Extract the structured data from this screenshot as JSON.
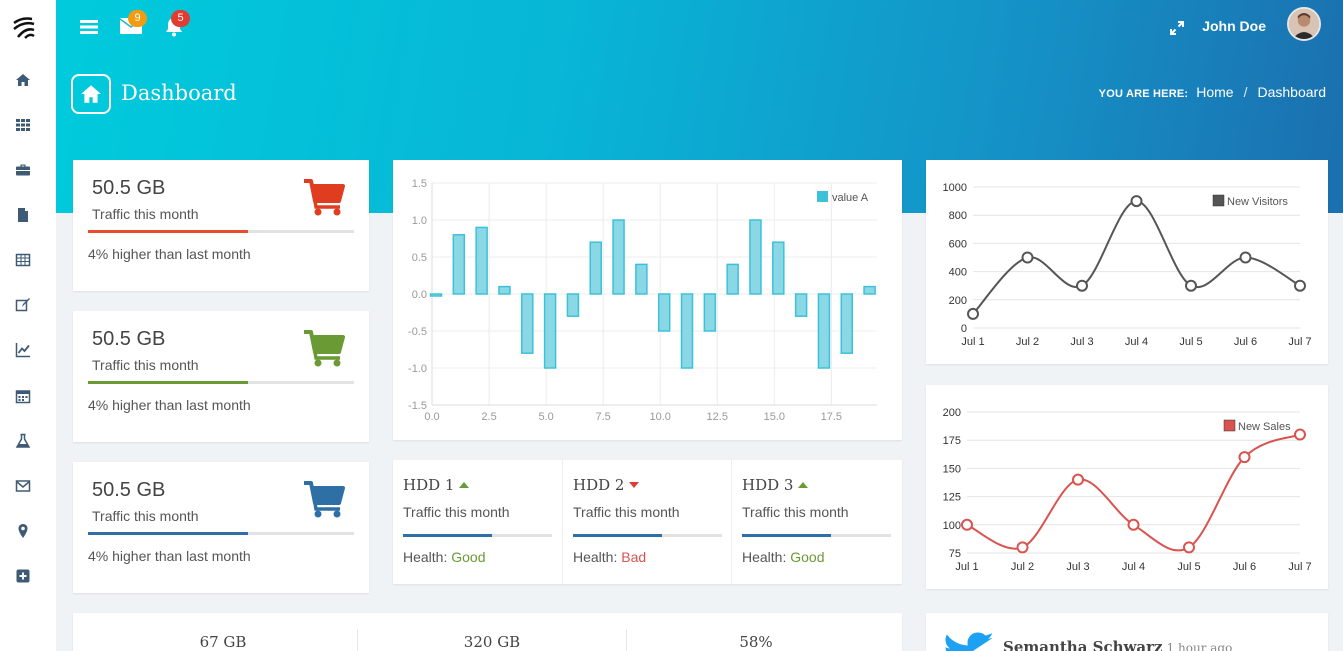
{
  "header": {
    "messages_count": "9",
    "notifications_count": "5",
    "user_name": "John Doe",
    "page_title": "Dashboard",
    "breadcrumb": {
      "label": "YOU ARE HERE:",
      "home": "Home",
      "current": "Dashboard"
    }
  },
  "sidebar": {
    "items": [
      {
        "icon": "home-icon"
      },
      {
        "icon": "grid-icon"
      },
      {
        "icon": "briefcase-icon"
      },
      {
        "icon": "file-icon"
      },
      {
        "icon": "table-icon"
      },
      {
        "icon": "edit-icon"
      },
      {
        "icon": "chart-line-icon"
      },
      {
        "icon": "calendar-icon"
      },
      {
        "icon": "flask-icon"
      },
      {
        "icon": "envelope-icon"
      },
      {
        "icon": "map-marker-icon"
      },
      {
        "icon": "plus-square-icon"
      }
    ]
  },
  "stats": [
    {
      "value": "50.5 GB",
      "label": "Traffic this month",
      "note": "4% higher than last month",
      "progress": 0.6,
      "color": "#e74c2c"
    },
    {
      "value": "50.5 GB",
      "label": "Traffic this month",
      "note": "4% higher than last month",
      "progress": 0.6,
      "color": "#6a9a34"
    },
    {
      "value": "50.5 GB",
      "label": "Traffic this month",
      "note": "4% higher than last month",
      "progress": 0.6,
      "color": "#2e70a5"
    }
  ],
  "hdd": [
    {
      "name": "HDD 1",
      "trend": "up",
      "label": "Traffic this month",
      "health_label": "Health:",
      "health": "Good",
      "progress": 0.6
    },
    {
      "name": "HDD 2",
      "trend": "down",
      "label": "Traffic this month",
      "health_label": "Health:",
      "health": "Bad",
      "progress": 0.6
    },
    {
      "name": "HDD 3",
      "trend": "up",
      "label": "Traffic this month",
      "health_label": "Health:",
      "health": "Good",
      "progress": 0.6
    }
  ],
  "bottom_stats": [
    "67 GB",
    "320 GB",
    "58%"
  ],
  "tweet": {
    "name": "Semantha Schwarz",
    "time": "1 hour ago"
  },
  "chart_data": [
    {
      "type": "bar",
      "series": [
        {
          "name": "value A",
          "color": "#3cc2d8"
        }
      ],
      "x": [
        0,
        1,
        2,
        3,
        4,
        5,
        6,
        7,
        8,
        9,
        10,
        11,
        12,
        13,
        14,
        15,
        16,
        17,
        18,
        19
      ],
      "values": [
        0.0,
        0.8,
        0.9,
        0.1,
        -0.8,
        -1.0,
        -0.3,
        0.7,
        1.0,
        0.4,
        -0.5,
        -1.0,
        -0.5,
        0.4,
        1.0,
        0.7,
        -0.3,
        -1.0,
        -0.8,
        0.1
      ],
      "xticks": [
        "0.0",
        "2.5",
        "5.0",
        "7.5",
        "10.0",
        "12.5",
        "15.0",
        "17.5"
      ],
      "yticks": [
        "1.5",
        "1.0",
        "0.5",
        "0.0",
        "-0.5",
        "-1.0",
        "-1.5"
      ],
      "xlim": [
        0,
        19.5
      ],
      "ylim": [
        -1.5,
        1.5
      ],
      "legend": "top-right",
      "grid": true
    },
    {
      "type": "line",
      "series": [
        {
          "name": "New Visitors",
          "color": "#555555",
          "values": [
            100,
            500,
            300,
            900,
            300,
            500,
            300
          ]
        }
      ],
      "categories": [
        "Jul 1",
        "Jul 2",
        "Jul 3",
        "Jul 4",
        "Jul 5",
        "Jul 6",
        "Jul 7"
      ],
      "yticks": [
        "1000",
        "800",
        "600",
        "400",
        "200",
        "0"
      ],
      "ylim": [
        0,
        1000
      ],
      "legend": "top-right",
      "grid": true
    },
    {
      "type": "line",
      "series": [
        {
          "name": "New Sales",
          "color": "#d9534f",
          "values": [
            100,
            80,
            140,
            100,
            80,
            160,
            180
          ]
        }
      ],
      "categories": [
        "Jul 1",
        "Jul 2",
        "Jul 3",
        "Jul 4",
        "Jul 5",
        "Jul 6",
        "Jul 7"
      ],
      "yticks": [
        "200",
        "175",
        "150",
        "125",
        "100",
        "75"
      ],
      "ylim": [
        75,
        200
      ],
      "legend": "top-right",
      "grid": true
    }
  ]
}
